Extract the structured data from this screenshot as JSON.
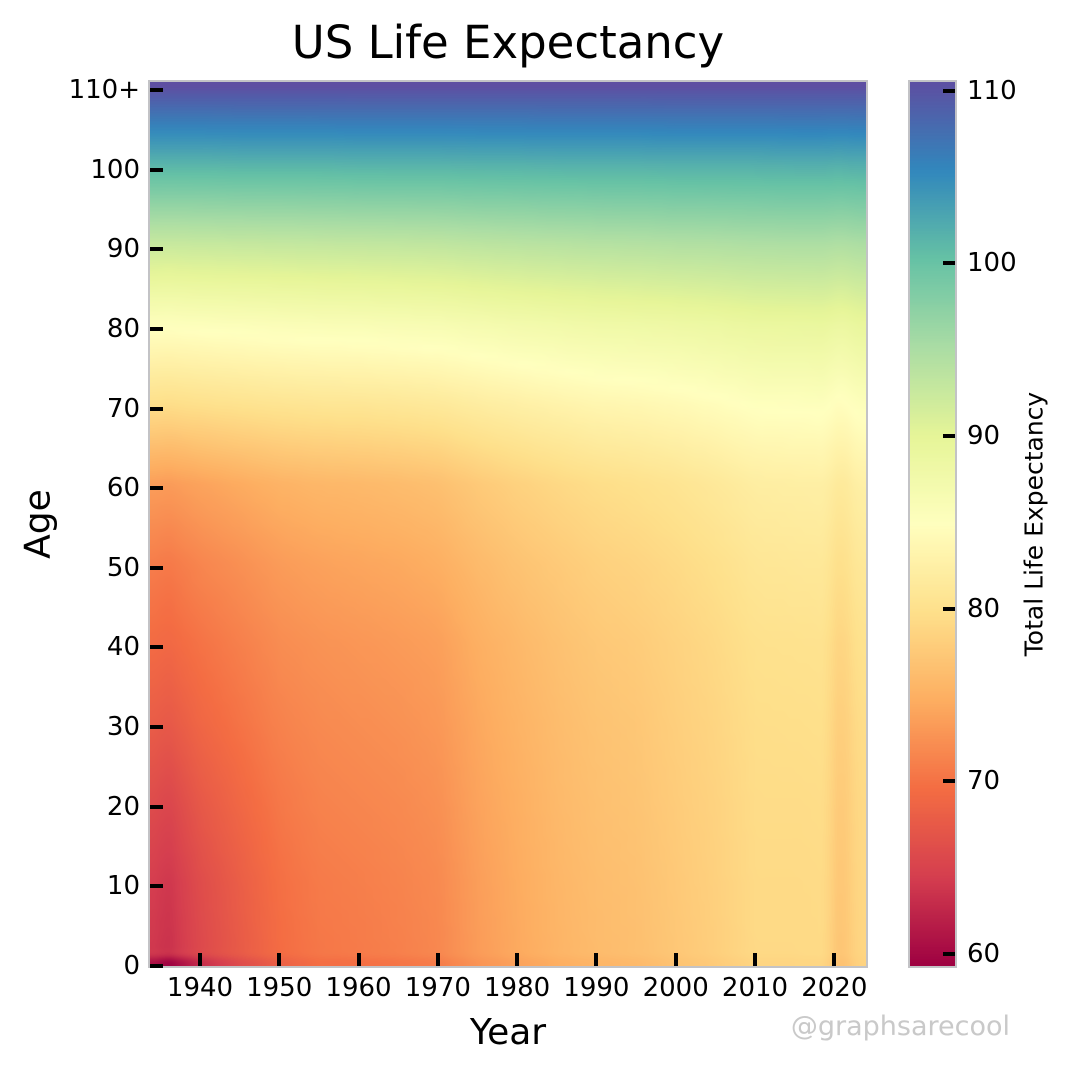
{
  "title": "US Life Expectancy",
  "xlabel": "Year",
  "ylabel": "Age",
  "watermark": "@graphsarecool",
  "colorbar": {
    "label": "Total Life Expectancy",
    "ticks": [
      60,
      70,
      80,
      90,
      100,
      110
    ],
    "vmin": 59.3,
    "vmax": 110.5
  },
  "chart_data": {
    "type": "heatmap",
    "title": "US Life Expectancy",
    "xlabel": "Year",
    "ylabel": "Age",
    "colorbar_label": "Total Life Expectancy",
    "x_ticks": [
      1940,
      1950,
      1960,
      1970,
      1980,
      1990,
      2000,
      2010,
      2020
    ],
    "y_ticks": [
      0,
      10,
      20,
      30,
      40,
      50,
      60,
      70,
      80,
      90,
      100,
      110
    ],
    "y_tick_labels": [
      "0",
      "10",
      "20",
      "30",
      "40",
      "50",
      "60",
      "70",
      "80",
      "90",
      "100",
      "110+"
    ],
    "x_range": [
      1933.7,
      2024
    ],
    "y_range": [
      0,
      111
    ],
    "vmin": 59.3,
    "vmax": 110.5,
    "colormap": {
      "name": "Spectral",
      "stops": [
        {
          "t": 0.0,
          "color": "#9e0142"
        },
        {
          "t": 0.1,
          "color": "#d53e4f"
        },
        {
          "t": 0.2,
          "color": "#f46d43"
        },
        {
          "t": 0.3,
          "color": "#fdae61"
        },
        {
          "t": 0.4,
          "color": "#fee08b"
        },
        {
          "t": 0.5,
          "color": "#ffffbf"
        },
        {
          "t": 0.6,
          "color": "#e6f598"
        },
        {
          "t": 0.7,
          "color": "#abdda4"
        },
        {
          "t": 0.8,
          "color": "#66c2a5"
        },
        {
          "t": 0.9,
          "color": "#3288bd"
        },
        {
          "t": 1.0,
          "color": "#5e4fa2"
        }
      ]
    },
    "grid_years": [
      1933,
      1936,
      1940,
      1945,
      1950,
      1955,
      1960,
      1965,
      1970,
      1975,
      1980,
      1985,
      1990,
      1995,
      2000,
      2005,
      2010,
      2015,
      2019,
      2020,
      2021,
      2022,
      2023
    ],
    "grid_ages": [
      0,
      1,
      10,
      20,
      30,
      40,
      50,
      60,
      70,
      80,
      90,
      100,
      110
    ],
    "values": [
      [
        61.5,
        59.3,
        63.0,
        65.9,
        68.2,
        69.6,
        69.7,
        70.2,
        70.8,
        72.6,
        73.7,
        74.7,
        75.4,
        75.8,
        76.8,
        77.6,
        78.7,
        78.7,
        78.8,
        77.0,
        76.4,
        77.5,
        78.4
      ],
      [
        64.3,
        63.3,
        65.6,
        67.5,
        69.4,
        70.3,
        70.6,
        71.0,
        71.6,
        73.2,
        74.3,
        75.3,
        76.0,
        76.4,
        77.2,
        78.0,
        79.1,
        79.1,
        79.2,
        77.4,
        76.8,
        77.8,
        78.7
      ],
      [
        64.8,
        63.8,
        66.0,
        67.9,
        69.7,
        70.6,
        70.9,
        71.3,
        71.8,
        73.4,
        74.5,
        75.5,
        76.2,
        76.6,
        77.4,
        78.2,
        79.2,
        79.2,
        79.3,
        77.6,
        77.0,
        78.0,
        78.9
      ],
      [
        66.3,
        65.3,
        67.3,
        68.9,
        70.4,
        71.2,
        71.5,
        71.8,
        72.3,
        73.8,
        74.8,
        75.8,
        76.5,
        76.9,
        77.7,
        78.4,
        79.4,
        79.4,
        79.5,
        77.9,
        77.3,
        78.2,
        79.1
      ],
      [
        68.0,
        67.3,
        68.8,
        70.0,
        71.2,
        71.8,
        72.1,
        72.4,
        72.9,
        74.2,
        75.2,
        76.1,
        76.8,
        77.2,
        78.0,
        78.7,
        79.6,
        79.7,
        79.8,
        78.3,
        77.8,
        78.6,
        79.5
      ],
      [
        69.5,
        69.0,
        70.0,
        71.0,
        72.0,
        72.5,
        72.8,
        73.1,
        73.5,
        74.8,
        75.7,
        76.6,
        77.3,
        77.7,
        78.4,
        79.1,
        80.0,
        80.1,
        80.2,
        78.9,
        78.5,
        79.3,
        80.1
      ],
      [
        71.0,
        70.5,
        71.5,
        72.3,
        73.2,
        73.7,
        74.0,
        74.3,
        74.8,
        75.9,
        76.8,
        77.5,
        78.2,
        78.6,
        79.2,
        79.9,
        80.8,
        81.0,
        81.1,
        80.0,
        79.7,
        80.4,
        81.1
      ],
      [
        73.5,
        73.2,
        73.8,
        74.5,
        75.2,
        75.6,
        75.8,
        76.1,
        76.5,
        77.5,
        78.3,
        79.0,
        79.6,
        80.0,
        80.5,
        81.2,
        82.0,
        82.2,
        82.3,
        81.5,
        81.2,
        81.8,
        82.4
      ],
      [
        79.8,
        79.6,
        79.9,
        80.2,
        80.5,
        80.7,
        80.8,
        81.0,
        81.3,
        81.9,
        82.4,
        82.9,
        83.4,
        83.6,
        84.0,
        84.5,
        85.1,
        85.2,
        85.3,
        84.7,
        84.6,
        85.0,
        85.4
      ],
      [
        85.3,
        85.2,
        85.4,
        85.6,
        85.8,
        86.0,
        86.1,
        86.3,
        86.5,
        86.9,
        87.3,
        87.6,
        87.9,
        88.1,
        88.3,
        88.6,
        89.0,
        89.1,
        89.2,
        88.8,
        88.7,
        89.0,
        89.3
      ],
      [
        92.6,
        92.5,
        92.6,
        92.7,
        92.8,
        92.9,
        93.0,
        93.1,
        93.2,
        93.5,
        93.7,
        93.9,
        94.1,
        94.2,
        94.4,
        94.5,
        94.7,
        94.8,
        94.8,
        94.6,
        94.6,
        94.7,
        94.9
      ],
      [
        101.3,
        101.3,
        101.3,
        101.4,
        101.4,
        101.4,
        101.5,
        101.5,
        101.5,
        101.6,
        101.6,
        101.7,
        101.7,
        101.7,
        101.8,
        101.8,
        101.8,
        101.9,
        101.9,
        101.8,
        101.8,
        101.9,
        101.9
      ],
      [
        110.5,
        110.5,
        110.5,
        110.5,
        110.5,
        110.5,
        110.5,
        110.5,
        110.5,
        110.5,
        110.5,
        110.5,
        110.5,
        110.5,
        110.5,
        110.5,
        110.5,
        110.5,
        110.5,
        110.5,
        110.5,
        110.5,
        110.5
      ]
    ]
  }
}
